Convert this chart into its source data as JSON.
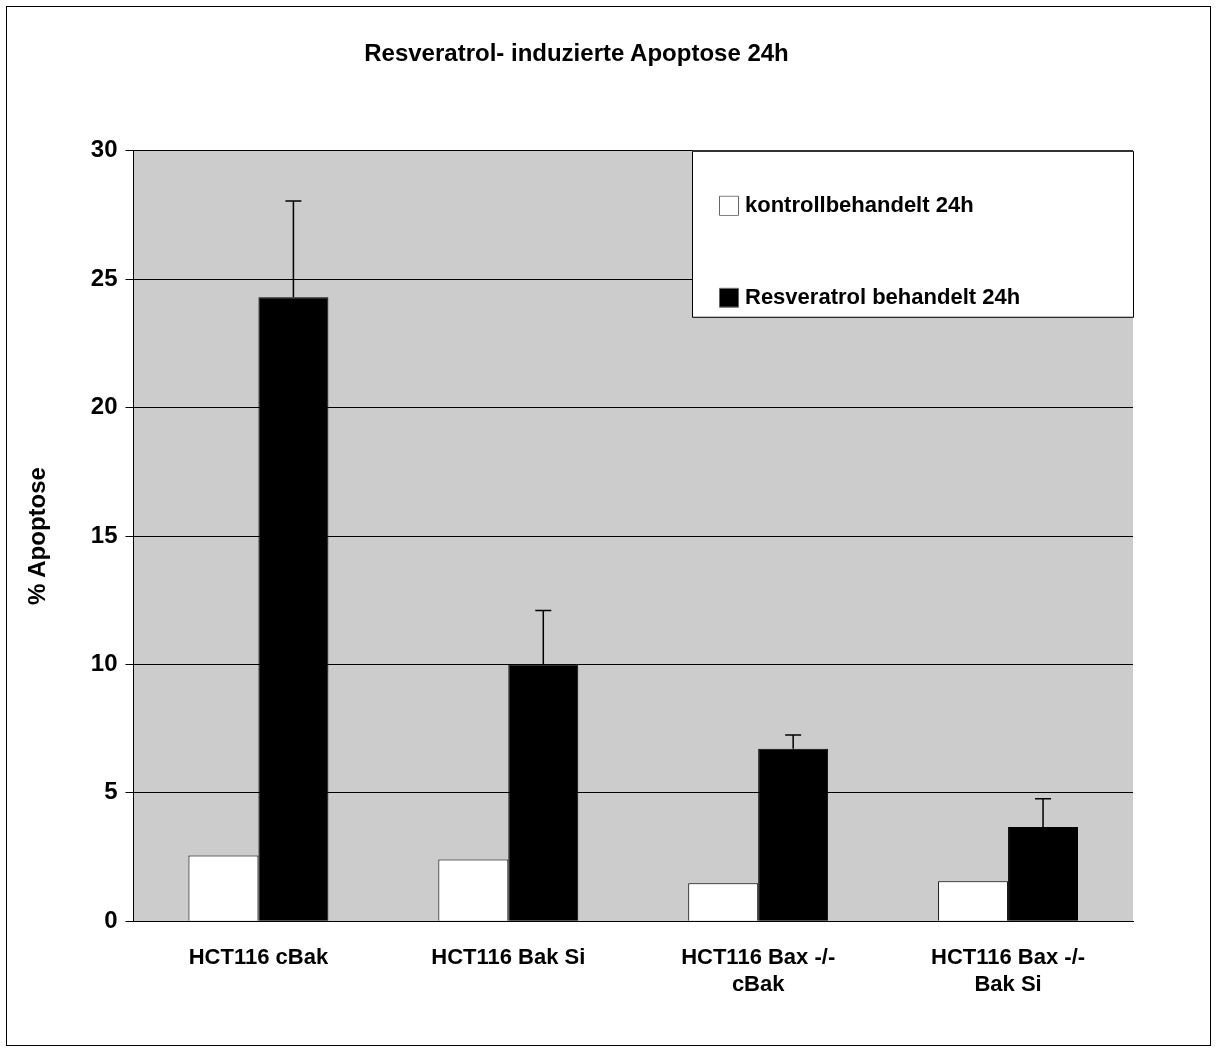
{
  "chart_data": {
    "type": "bar",
    "title": "Resveratrol- induzierte Apoptose 24h",
    "ylabel": "% Apoptose",
    "categories": [
      "HCT116 cBak",
      "HCT116 Bak Si",
      "HCT116 Bax -/- cBak",
      "HCT116 Bax -/- Bak Si"
    ],
    "series": [
      {
        "name": "kontrollbehandelt 24h",
        "color": "#ffffff",
        "values": [
          2.56,
          2.4,
          1.48,
          1.56
        ]
      },
      {
        "name": "Resveratrol behandelt 24h",
        "color": "#000000",
        "values": [
          24.3,
          10.0,
          6.72,
          3.67
        ],
        "errors": [
          3.75,
          2.1,
          0.53,
          1.1
        ]
      }
    ],
    "ylim": [
      0,
      30
    ],
    "yticks": [
      0,
      5,
      10,
      15,
      20,
      25,
      30
    ],
    "grid": "y",
    "legend": "top right"
  }
}
